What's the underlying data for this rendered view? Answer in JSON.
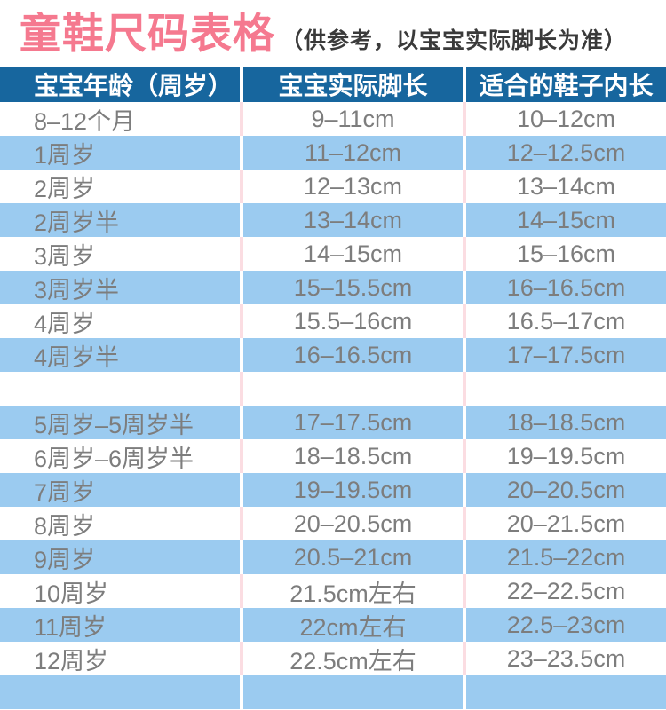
{
  "chart_data": {
    "type": "table",
    "title": "童鞋尺码表格",
    "subtitle": "（供参考，以宝宝实际脚长为准）",
    "columns": [
      "宝宝年龄（周岁）",
      "宝宝实际脚长",
      "适合的鞋子内长"
    ],
    "rows": [
      [
        "8–12个月",
        "9–11cm",
        "10–12cm"
      ],
      [
        "1周岁",
        "11–12cm",
        "12–12.5cm"
      ],
      [
        "2周岁",
        "12–13cm",
        "13–14cm"
      ],
      [
        "2周岁半",
        "13–14cm",
        "14–15cm"
      ],
      [
        "3周岁",
        "14–15cm",
        "15–16cm"
      ],
      [
        "3周岁半",
        "15–15.5cm",
        "16–16.5cm"
      ],
      [
        "4周岁",
        "15.5–16cm",
        "16.5–17cm"
      ],
      [
        "4周岁半",
        "16–16.5cm",
        "17–17.5cm"
      ],
      [
        "",
        "",
        ""
      ],
      [
        "5周岁–5周岁半",
        "17–17.5cm",
        "18–18.5cm"
      ],
      [
        "6周岁–6周岁半",
        "18–18.5cm",
        "19–19.5cm"
      ],
      [
        "7周岁",
        "19–19.5cm",
        "20–20.5cm"
      ],
      [
        "8周岁",
        "20–20.5cm",
        "20–21.5cm"
      ],
      [
        "9周岁",
        "20.5–21cm",
        "21.5–22cm"
      ],
      [
        "10周岁",
        "21.5cm左右",
        "22–22.5cm"
      ],
      [
        "11周岁",
        "22cm左右",
        "22.5–23cm"
      ],
      [
        "12周岁",
        "22.5cm左右",
        "23–23.5cm"
      ],
      [
        "",
        "",
        ""
      ]
    ],
    "layout_hints": {
      "header_position": "top",
      "grid": "vertical separators only",
      "row_striping": "white / light-blue alternating"
    },
    "colors": {
      "title_pink": "#f5798f",
      "subtitle_text": "#3a3a3a",
      "header_bg": "#17669e",
      "header_text": "#ffffff",
      "row_blue": "#9bcbf0",
      "row_white": "#ffffff",
      "cell_text": "#7d7d7d",
      "separator_on_white": "#fbdde2",
      "separator_on_blue": "#ffffff"
    }
  }
}
